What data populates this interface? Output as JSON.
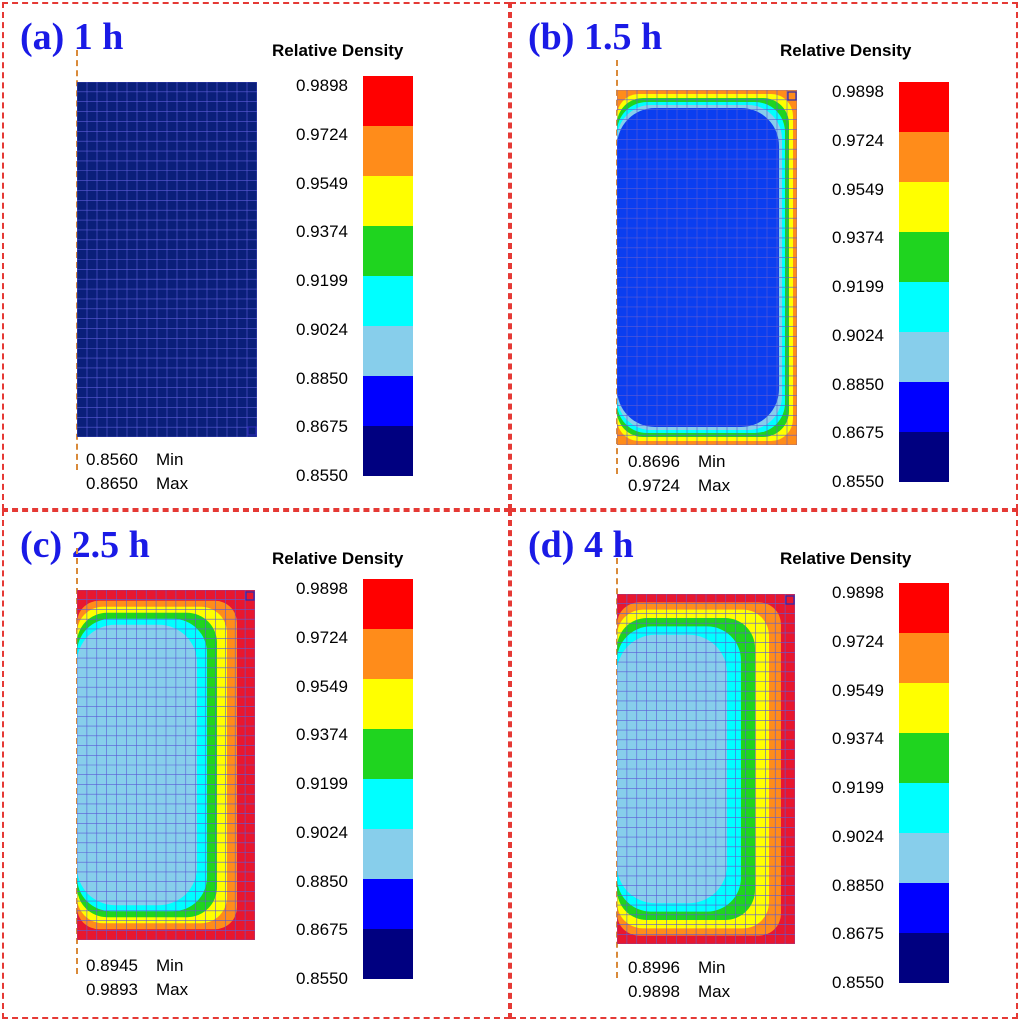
{
  "legend_colors": [
    "#ff0000",
    "#ff8c1a",
    "#ffff00",
    "#1fd41f",
    "#00ffff",
    "#87ceeb",
    "#0000ff",
    "#000080"
  ],
  "mesh_line_color": "#5b5bd6",
  "panels": [
    {
      "title": "(a) 1 h",
      "legend_title": "Relative Density",
      "ticks": [
        "0.9898",
        "0.9724",
        "0.9549",
        "0.9374",
        "0.9199",
        "0.9024",
        "0.8850",
        "0.8675",
        "0.8550"
      ],
      "min_value": "0.8560",
      "min_label": "Min",
      "max_value": "0.8650",
      "max_label": "Max",
      "contour_fills": [
        "#0a1f7a"
      ]
    },
    {
      "title": "(b) 1.5 h",
      "legend_title": "Relative Density",
      "ticks": [
        "0.9898",
        "0.9724",
        "0.9549",
        "0.9374",
        "0.9199",
        "0.9024",
        "0.8850",
        "0.8675",
        "0.8550"
      ],
      "min_value": "0.8696",
      "min_label": "Min",
      "max_value": "0.9724",
      "max_label": "Max",
      "contour_fills": [
        "#ff8c1a",
        "#ffff00",
        "#1fd41f",
        "#00ffff",
        "#87ceeb",
        "#0b3ef0"
      ]
    },
    {
      "title": "(c) 2.5 h",
      "legend_title": "Relative Density",
      "ticks": [
        "0.9898",
        "0.9724",
        "0.9549",
        "0.9374",
        "0.9199",
        "0.9024",
        "0.8850",
        "0.8675",
        "0.8550"
      ],
      "min_value": "0.8945",
      "min_label": "Min",
      "max_value": "0.9893",
      "max_label": "Max",
      "contour_fills": [
        "#e8172e",
        "#ff8c1a",
        "#ffff00",
        "#1fd41f",
        "#00ffff",
        "#87ceeb"
      ]
    },
    {
      "title": "(d) 4 h",
      "legend_title": "Relative Density",
      "ticks": [
        "0.9898",
        "0.9724",
        "0.9549",
        "0.9374",
        "0.9199",
        "0.9024",
        "0.8850",
        "0.8675",
        "0.8550"
      ],
      "min_value": "0.8996",
      "min_label": "Min",
      "max_value": "0.9898",
      "max_label": "Max",
      "contour_fills": [
        "#e8172e",
        "#ff8c1a",
        "#ffff00",
        "#1fd41f",
        "#00ffff",
        "#87ceeb"
      ]
    }
  ]
}
